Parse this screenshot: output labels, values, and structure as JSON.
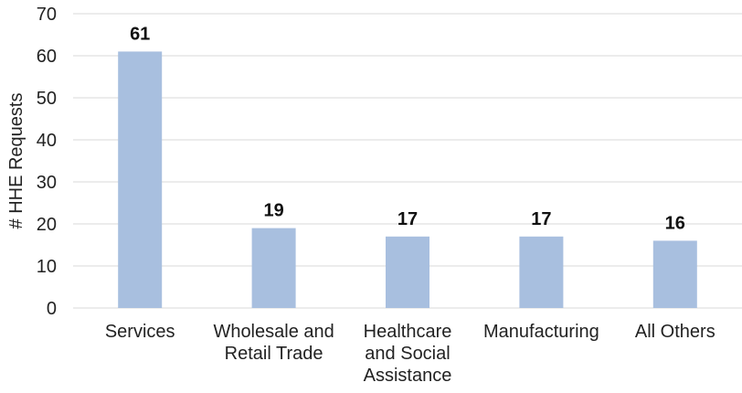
{
  "chart_data": {
    "type": "bar",
    "categories": [
      [
        "Services"
      ],
      [
        "Wholesale and",
        "Retail Trade"
      ],
      [
        "Healthcare",
        "and Social",
        "Assistance"
      ],
      [
        "Manufacturing"
      ],
      [
        "All Others"
      ]
    ],
    "values": [
      61,
      19,
      17,
      17,
      16
    ],
    "ylabel": "# HHE Requests",
    "ylim": [
      0,
      70
    ],
    "yticks": [
      0,
      10,
      20,
      30,
      40,
      50,
      60,
      70
    ],
    "grid": true,
    "bar_color": "#a8bfdf",
    "grid_color": "#d9d9d9"
  }
}
